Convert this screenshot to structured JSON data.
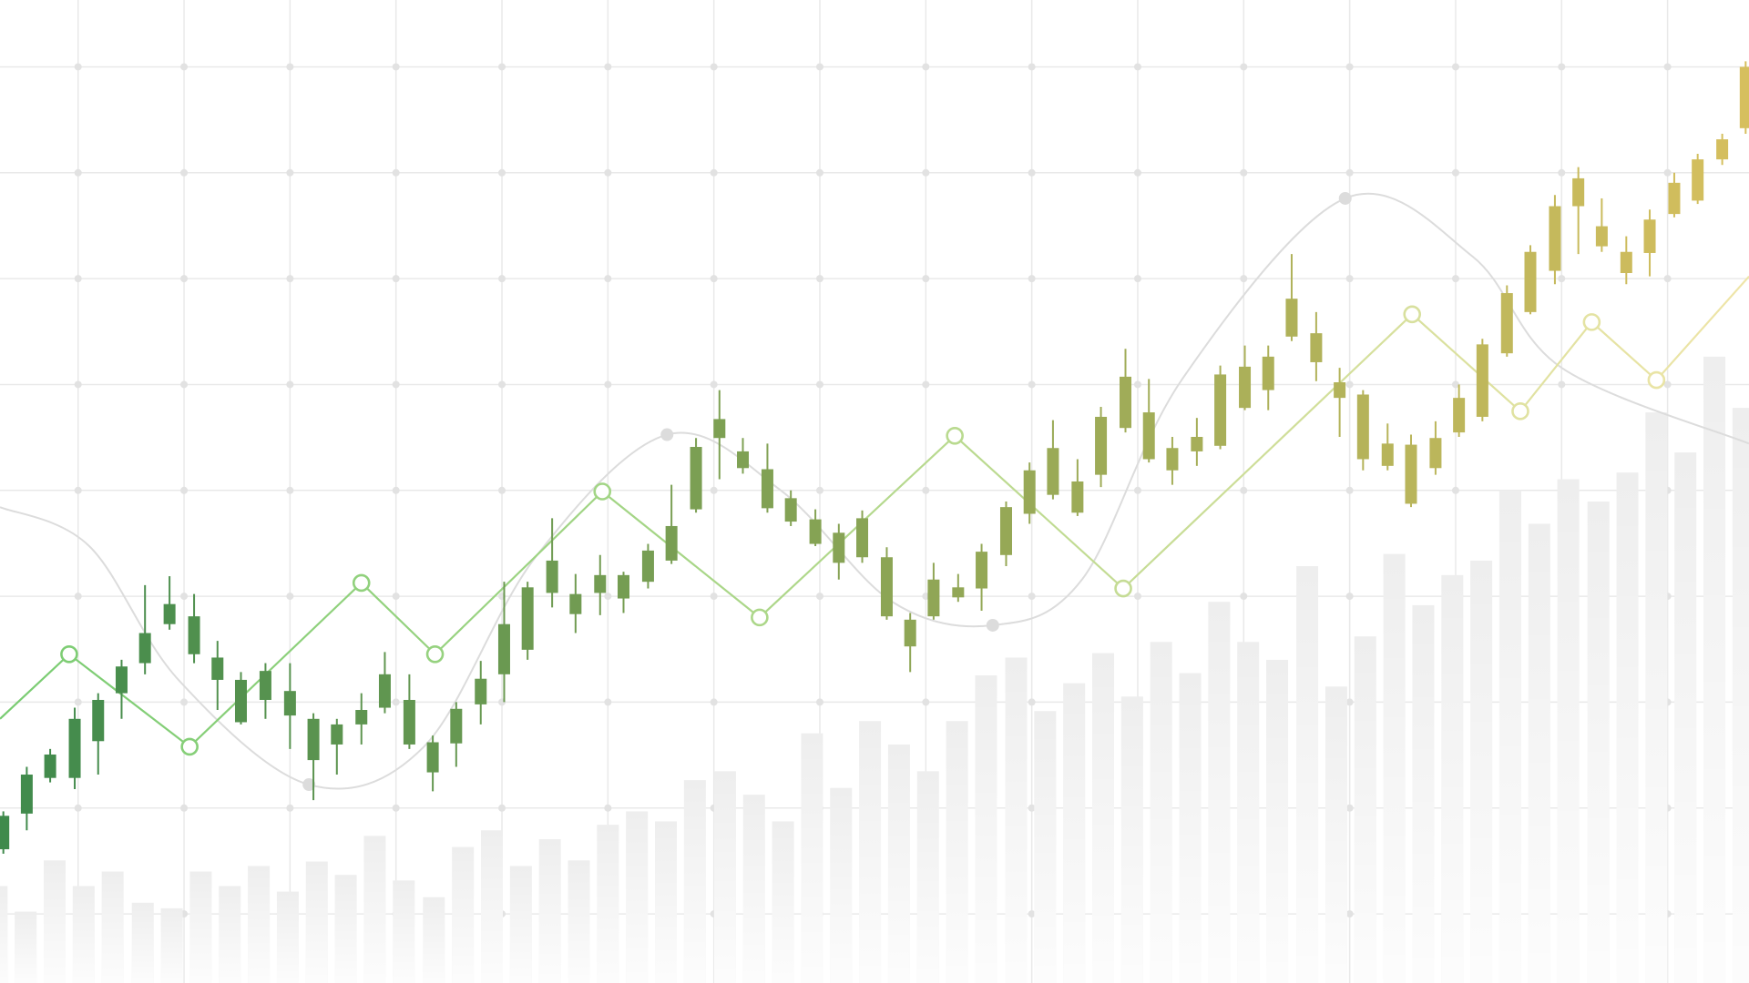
{
  "chart_data": [
    {
      "type": "bar",
      "color": "#eeeeee",
      "grid": true,
      "xlim": [
        0,
        1568
      ],
      "ylim": [
        0,
        882
      ],
      "xticks": [
        70,
        165,
        260,
        355,
        450,
        545,
        640,
        735,
        830,
        925,
        1020,
        1115,
        1210,
        1305,
        1400,
        1495
      ],
      "yticks": [
        822,
        727,
        632,
        537,
        442,
        347,
        252,
        157,
        62
      ],
      "x": [
        -3,
        23,
        49,
        75,
        101,
        128,
        154,
        180,
        206,
        232,
        258,
        284,
        310,
        336,
        362,
        389,
        415,
        441,
        467,
        493,
        519,
        545,
        571,
        597,
        623,
        650,
        676,
        702,
        728,
        754,
        780,
        806,
        832,
        858,
        884,
        911,
        937,
        963,
        989,
        1015,
        1041,
        1067,
        1093,
        1119,
        1145,
        1172,
        1198,
        1224,
        1250,
        1276,
        1302,
        1328,
        1354,
        1380,
        1406,
        1433,
        1459,
        1485,
        1511,
        1537,
        1563
      ],
      "values": [
        87,
        64,
        110,
        87,
        100,
        72,
        67,
        100,
        87,
        105,
        82,
        109,
        97,
        132,
        92,
        77,
        122,
        137,
        105,
        129,
        110,
        142,
        154,
        145,
        182,
        190,
        169,
        145,
        224,
        175,
        235,
        214,
        190,
        235,
        276,
        292,
        244,
        269,
        296,
        257,
        306,
        278,
        342,
        306,
        290,
        374,
        266,
        311,
        385,
        339,
        366,
        379,
        442,
        412,
        452,
        432,
        458,
        512,
        476,
        562,
        516
      ]
    },
    {
      "type": "line",
      "smooth": true,
      "color": "#dcdcdc",
      "markers": [
        3,
        6,
        9,
        12
      ],
      "xlim": [
        0,
        1568
      ],
      "ylim": [
        0,
        882
      ],
      "x": [
        0,
        80,
        160,
        277,
        380,
        480,
        598,
        700,
        800,
        890,
        970,
        1060,
        1206,
        1320,
        1400,
        1568
      ],
      "values": [
        427,
        392,
        272,
        178,
        212,
        382,
        492,
        442,
        342,
        321,
        362,
        542,
        704,
        652,
        552,
        484
      ]
    },
    {
      "type": "line",
      "smooth": false,
      "colors": [
        "#79cc72",
        "#efe5a8"
      ],
      "markers": [
        1,
        2,
        3,
        4,
        5,
        6,
        7,
        8,
        9,
        10,
        11,
        12
      ],
      "xlim": [
        0,
        1568
      ],
      "ylim": [
        0,
        882
      ],
      "x": [
        0,
        62,
        170,
        324,
        390,
        540,
        681,
        856,
        1007,
        1266,
        1363,
        1427,
        1485,
        1568
      ],
      "values": [
        237,
        295,
        212,
        359,
        295,
        441,
        328,
        491,
        354,
        600,
        513,
        593,
        541,
        634
      ]
    },
    {
      "type": "candlestick",
      "colors": [
        "#3f8a4c",
        "#d6bf5e"
      ],
      "xlim": [
        0,
        1568
      ],
      "ylim": [
        0,
        882
      ],
      "x": [
        3,
        24,
        45,
        67,
        88,
        109,
        130,
        152,
        174,
        195,
        216,
        238,
        260,
        281,
        302,
        324,
        345,
        367,
        388,
        409,
        431,
        452,
        473,
        495,
        516,
        538,
        559,
        581,
        602,
        624,
        645,
        666,
        688,
        709,
        731,
        752,
        773,
        795,
        816,
        837,
        859,
        880,
        902,
        923,
        944,
        966,
        987,
        1009,
        1030,
        1051,
        1073,
        1094,
        1116,
        1137,
        1158,
        1180,
        1201,
        1222,
        1244,
        1265,
        1287,
        1308,
        1329,
        1351,
        1372,
        1394,
        1415,
        1436,
        1458,
        1479,
        1501,
        1522,
        1544,
        1565
      ],
      "open": [
        120,
        152,
        184,
        184,
        217,
        260,
        287,
        322,
        295,
        272,
        234,
        254,
        240,
        200,
        214,
        232,
        247,
        214,
        189,
        215,
        250,
        277,
        299,
        350,
        331,
        350,
        345,
        360,
        379,
        425,
        489,
        462,
        426,
        414,
        394,
        377,
        382,
        329,
        302,
        329,
        346,
        354,
        384,
        421,
        438,
        422,
        456,
        498,
        470,
        460,
        477,
        482,
        516,
        532,
        580,
        557,
        525,
        470,
        464,
        430,
        462,
        494,
        508,
        565,
        602,
        639,
        697,
        661,
        637,
        655,
        690,
        702,
        739,
        767
      ],
      "close": [
        150,
        187,
        205,
        237,
        254,
        284,
        314,
        340,
        329,
        292,
        272,
        280,
        262,
        237,
        232,
        245,
        277,
        254,
        216,
        246,
        273,
        322,
        355,
        379,
        349,
        366,
        366,
        388,
        410,
        481,
        506,
        477,
        461,
        435,
        416,
        404,
        417,
        382,
        326,
        362,
        355,
        387,
        427,
        460,
        480,
        450,
        508,
        544,
        512,
        480,
        490,
        546,
        553,
        562,
        614,
        583,
        539,
        528,
        484,
        483,
        489,
        525,
        573,
        619,
        656,
        697,
        722,
        679,
        656,
        685,
        718,
        739,
        757,
        822
      ],
      "high": [
        154,
        194,
        210,
        247,
        260,
        290,
        357,
        365,
        349,
        307,
        279,
        287,
        287,
        242,
        237,
        260,
        297,
        277,
        222,
        252,
        289,
        360,
        360,
        417,
        367,
        384,
        369,
        394,
        447,
        489,
        532,
        489,
        484,
        442,
        425,
        412,
        424,
        391,
        332,
        377,
        367,
        394,
        432,
        467,
        505,
        470,
        517,
        569,
        542,
        490,
        507,
        554,
        572,
        572,
        654,
        602,
        552,
        532,
        502,
        492,
        504,
        537,
        578,
        626,
        662,
        707,
        732,
        704,
        670,
        694,
        727,
        744,
        762,
        827
      ],
      "low": [
        116,
        137,
        180,
        174,
        187,
        237,
        277,
        317,
        287,
        245,
        232,
        237,
        210,
        164,
        187,
        214,
        242,
        210,
        172,
        194,
        232,
        252,
        290,
        337,
        314,
        330,
        332,
        354,
        376,
        422,
        452,
        457,
        422,
        410,
        392,
        362,
        377,
        326,
        279,
        326,
        342,
        334,
        374,
        412,
        434,
        419,
        445,
        494,
        467,
        447,
        464,
        479,
        514,
        514,
        576,
        540,
        490,
        460,
        460,
        427,
        456,
        490,
        504,
        562,
        600,
        627,
        654,
        656,
        627,
        634,
        687,
        699,
        734,
        762
      ]
    }
  ]
}
